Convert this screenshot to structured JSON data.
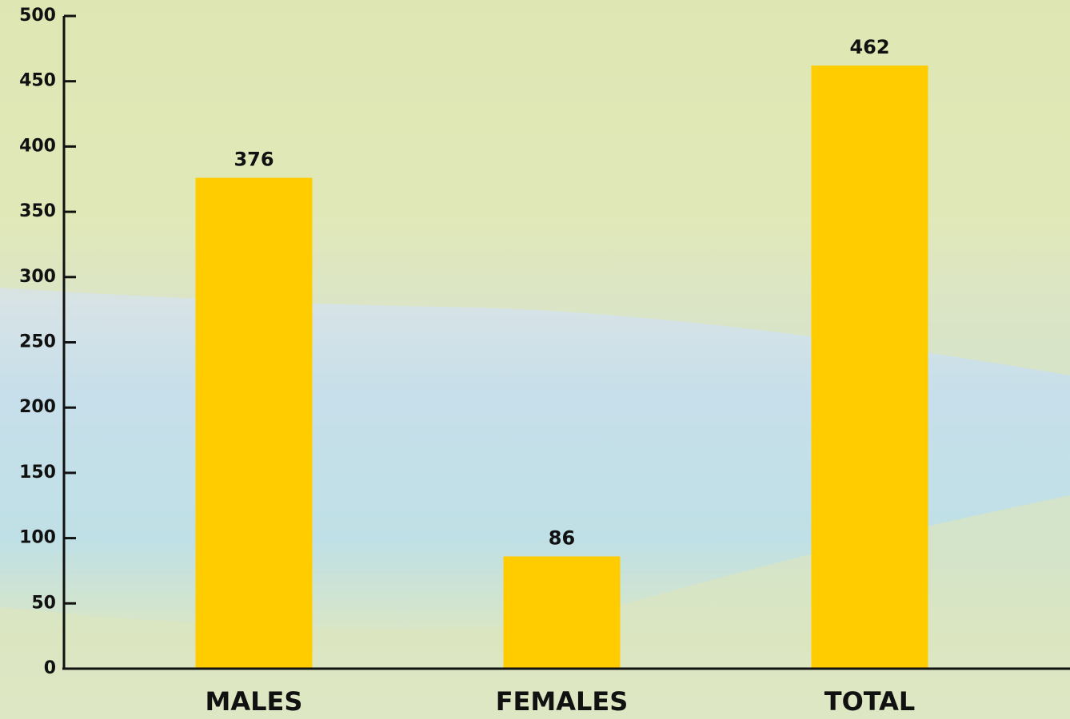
{
  "chart_data": {
    "type": "bar",
    "categories": [
      "MALES",
      "FEMALES",
      "TOTAL"
    ],
    "values": [
      376,
      86,
      462
    ],
    "color": "#ffcc00",
    "ylim": [
      0,
      500
    ],
    "yticks": [
      0,
      50,
      100,
      150,
      200,
      250,
      300,
      350,
      400,
      450,
      500
    ],
    "grid": false
  }
}
